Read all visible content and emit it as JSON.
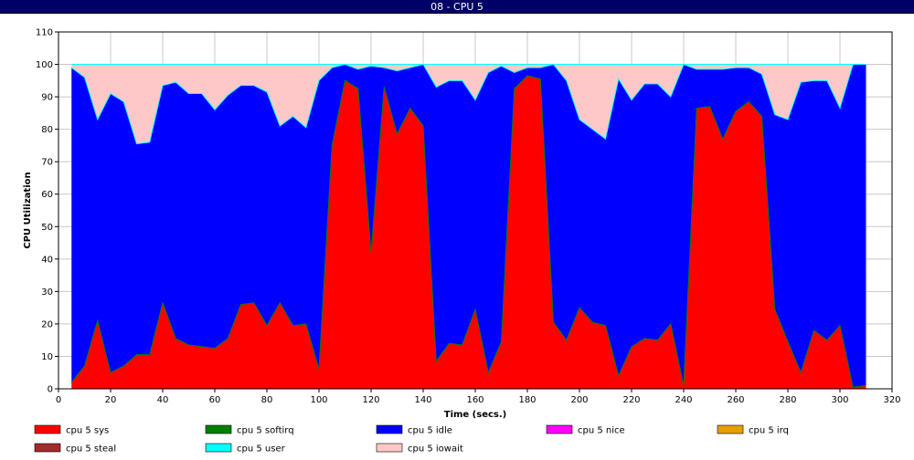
{
  "window": {
    "title": "08 - CPU 5"
  },
  "colors": {
    "cpu 5 sys": "#ff0000",
    "cpu 5 softirq": "#008000",
    "cpu 5 idle": "#0000ff",
    "cpu 5 nice": "#ff00ff",
    "cpu 5 irq": "#e6a000",
    "cpu 5 steal": "#a52a2a",
    "cpu 5 user": "#00ffff",
    "cpu 5 iowait": "#ffc8c8"
  },
  "chart_data": {
    "type": "area",
    "title": "08 - CPU 5",
    "xlabel": "Time (secs.)",
    "ylabel": "CPU Utilization",
    "xlim": [
      0,
      320
    ],
    "ylim": [
      0,
      110
    ],
    "x_ticks": [
      0,
      20,
      40,
      60,
      80,
      100,
      120,
      140,
      160,
      180,
      200,
      220,
      240,
      260,
      280,
      300,
      320
    ],
    "y_ticks": [
      0,
      10,
      20,
      30,
      40,
      50,
      60,
      70,
      80,
      90,
      100,
      110
    ],
    "grid": true,
    "legend_position": "bottom",
    "stacked": true,
    "x": [
      5,
      10,
      15,
      20,
      25,
      30,
      35,
      40,
      45,
      50,
      55,
      60,
      65,
      70,
      75,
      80,
      85,
      90,
      95,
      100,
      105,
      110,
      115,
      120,
      125,
      130,
      135,
      140,
      145,
      150,
      155,
      160,
      165,
      170,
      175,
      180,
      185,
      190,
      195,
      200,
      205,
      210,
      215,
      220,
      225,
      230,
      235,
      240,
      245,
      250,
      255,
      260,
      265,
      270,
      275,
      280,
      285,
      290,
      295,
      300,
      305,
      310
    ],
    "series": [
      {
        "name": "cpu 5 sys",
        "values": [
          2,
          7,
          21,
          5,
          7,
          10.5,
          10.5,
          26.5,
          15.5,
          13.5,
          13,
          12.5,
          15.5,
          26,
          26.5,
          19.5,
          26.5,
          19.5,
          20,
          6,
          75,
          95,
          92.5,
          42,
          93,
          78.5,
          86.5,
          81,
          8.5,
          14,
          13.5,
          24.5,
          5,
          14.5,
          92.5,
          96.5,
          95.5,
          20.5,
          15,
          25,
          20.5,
          19.5,
          4,
          13,
          15.5,
          15,
          20,
          1,
          86.5,
          87,
          77,
          85.5,
          88.5,
          84,
          24.5,
          14.5,
          5,
          18,
          15,
          19.5,
          0.5,
          1
        ]
      },
      {
        "name": "cpu 5 softirq",
        "values": [
          0,
          0,
          0,
          0,
          0,
          0,
          0,
          0,
          0,
          0,
          0,
          0,
          0,
          0,
          0,
          0,
          0,
          0,
          0,
          0,
          0,
          0,
          0,
          0,
          0,
          0,
          0,
          0,
          0,
          0,
          0,
          0,
          0,
          0,
          0,
          0,
          0,
          0,
          0,
          0,
          0,
          0,
          0,
          0,
          0,
          0,
          0,
          0,
          0,
          0,
          0,
          0,
          0,
          0,
          0,
          0,
          0,
          0,
          0,
          0,
          0,
          0
        ]
      },
      {
        "name": "cpu 5 idle",
        "values": [
          97,
          89,
          62,
          86,
          81.5,
          65,
          65.5,
          67,
          79,
          77.5,
          78,
          73.5,
          75,
          67.5,
          67,
          72,
          54.5,
          64.5,
          60.5,
          89,
          24,
          5,
          6,
          57.5,
          6,
          19.5,
          12.5,
          19,
          84.5,
          81,
          81.5,
          64.5,
          92.5,
          85,
          5,
          2.5,
          3.5,
          79.5,
          80,
          58,
          59.5,
          57.5,
          91.5,
          76,
          78.5,
          79,
          70,
          99,
          12,
          11.5,
          21.5,
          13.5,
          10.5,
          13,
          60,
          68.5,
          89.5,
          77,
          80,
          67,
          99.5,
          99
        ]
      },
      {
        "name": "cpu 5 nice",
        "values": [
          0,
          0,
          0,
          0,
          0,
          0,
          0,
          0,
          0,
          0,
          0,
          0,
          0,
          0,
          0,
          0,
          0,
          0,
          0,
          0,
          0,
          0,
          0,
          0,
          0,
          0,
          0,
          0,
          0,
          0,
          0,
          0,
          0,
          0,
          0,
          0,
          0,
          0,
          0,
          0,
          0,
          0,
          0,
          0,
          0,
          0,
          0,
          0,
          0,
          0,
          0,
          0,
          0,
          0,
          0,
          0,
          0,
          0,
          0,
          0,
          0,
          0
        ]
      },
      {
        "name": "cpu 5 irq",
        "values": [
          0,
          0,
          0,
          0,
          0,
          0,
          0,
          0,
          0,
          0,
          0,
          0,
          0,
          0,
          0,
          0,
          0,
          0,
          0,
          0,
          0,
          0,
          0,
          0,
          0,
          0,
          0,
          0,
          0,
          0,
          0,
          0,
          0,
          0,
          0,
          0,
          0,
          0,
          0,
          0,
          0,
          0,
          0,
          0,
          0,
          0,
          0,
          0,
          0,
          0,
          0,
          0,
          0,
          0,
          0,
          0,
          0,
          0,
          0,
          0,
          0,
          0
        ]
      },
      {
        "name": "cpu 5 steal",
        "values": [
          0,
          0,
          0,
          0,
          0,
          0,
          0,
          0,
          0,
          0,
          0,
          0,
          0,
          0,
          0,
          0,
          0,
          0,
          0,
          0,
          0,
          0,
          0,
          0,
          0,
          0,
          0,
          0,
          0,
          0,
          0,
          0,
          0,
          0,
          0,
          0,
          0,
          0,
          0,
          0,
          0,
          0,
          0,
          0,
          0,
          0,
          0,
          0,
          0,
          0,
          0,
          0,
          0,
          0,
          0,
          0,
          0,
          0,
          0,
          0,
          0,
          0
        ]
      },
      {
        "name": "cpu 5 user",
        "values": [
          0,
          0,
          0,
          0,
          0,
          0,
          0,
          0,
          0,
          0,
          0,
          0,
          0,
          0,
          0,
          0,
          0,
          0,
          0,
          0,
          0,
          0,
          0,
          0,
          0,
          0,
          0,
          0,
          0,
          0,
          0,
          0,
          0,
          0,
          0,
          0,
          0,
          0,
          0,
          0,
          0,
          0,
          0,
          0,
          0,
          0,
          0,
          0,
          0,
          0,
          0,
          0,
          0,
          0,
          0,
          0,
          0,
          0,
          0,
          0,
          0,
          0
        ]
      },
      {
        "name": "cpu 5 iowait",
        "values": [
          1,
          4,
          17,
          9,
          11.5,
          24.5,
          24,
          6.5,
          5.5,
          9,
          9,
          14,
          9.5,
          6.5,
          6.5,
          8.5,
          19,
          16,
          19.5,
          5,
          1,
          0,
          1.5,
          0.5,
          1,
          2,
          1,
          0,
          7,
          5,
          5,
          11,
          2.5,
          0.5,
          2.5,
          1,
          1,
          0,
          5,
          17,
          20,
          23,
          4.5,
          11,
          6,
          6,
          10,
          0,
          1.5,
          1.5,
          1.5,
          1,
          1,
          3,
          15.5,
          17,
          5.5,
          5,
          5,
          13.5,
          0,
          0
        ]
      }
    ]
  }
}
